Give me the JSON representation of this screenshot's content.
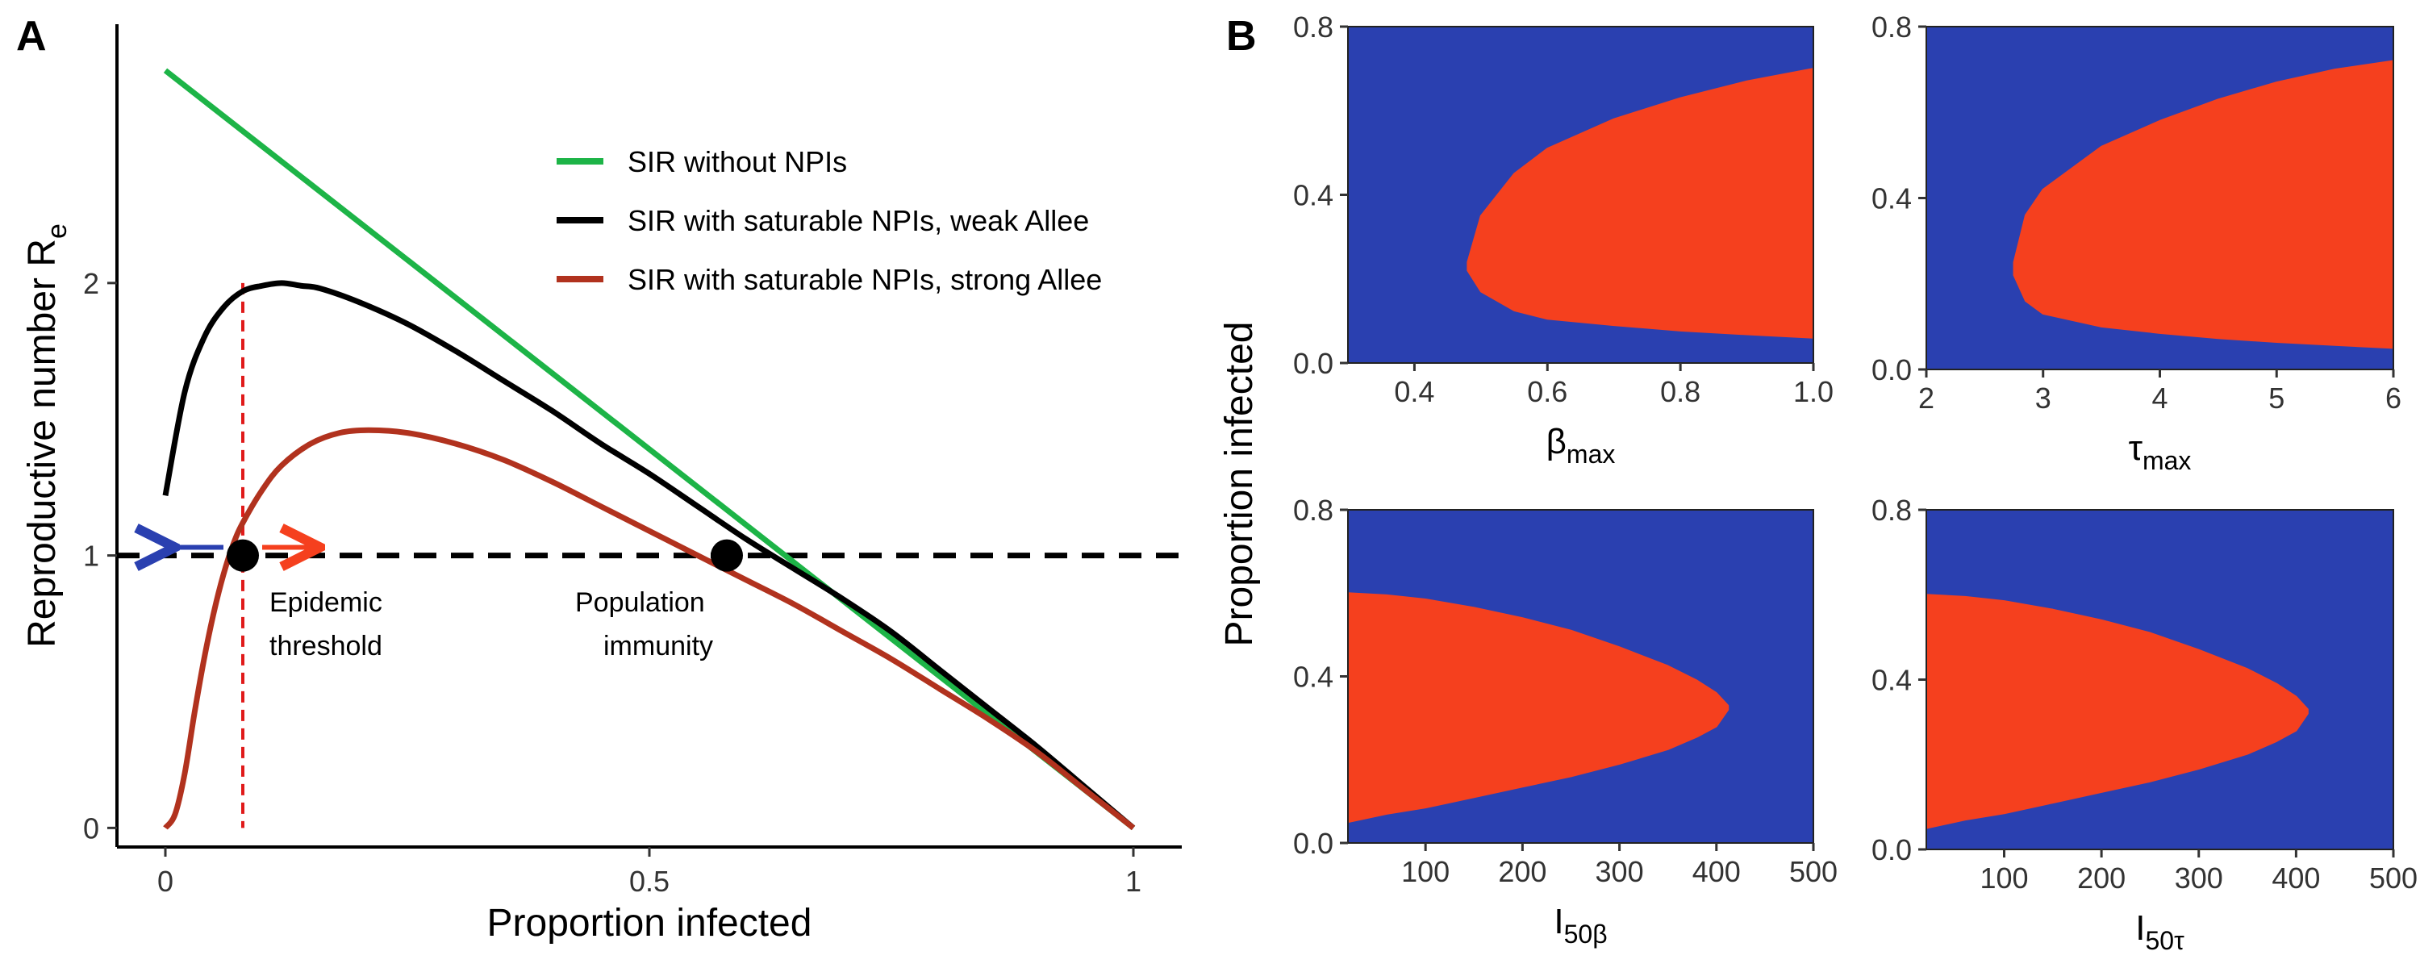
{
  "panel_a": {
    "letter": "A",
    "xlabel": "Proportion infected",
    "ylabel": "Reproductive number  R",
    "ylabel_sub": "e",
    "legend": [
      {
        "label": "SIR without NPIs",
        "color": "#1db447"
      },
      {
        "label": "SIR with saturable NPIs, weak Allee",
        "color": "#000000"
      },
      {
        "label": "SIR with saturable NPIs, strong Allee",
        "color": "#b1321e"
      }
    ],
    "annotations": {
      "epidemic_1": "Epidemic",
      "epidemic_2": "threshold",
      "immunity_1": "Population",
      "immunity_2": "immunity"
    }
  },
  "panel_b": {
    "letter": "B",
    "ylabel": "Proportion infected",
    "colors": {
      "low": "#2a40b0",
      "high": "#f5401e"
    }
  },
  "chart_data": [
    {
      "type": "line",
      "xlabel": "Proportion infected",
      "ylabel": "Reproductive number R_e",
      "xlim": [
        -0.05,
        1.05
      ],
      "ylim": [
        -0.07,
        2.95
      ],
      "x_ticks": [
        0,
        0.5,
        1
      ],
      "x_tick_labels": [
        "0",
        "0.5",
        "1"
      ],
      "y_ticks": [
        0,
        1,
        2
      ],
      "y_tick_labels": [
        "0",
        "1",
        "2"
      ],
      "series": [
        {
          "name": "SIR without NPIs",
          "color": "#1db447",
          "x": [
            0,
            1
          ],
          "y": [
            2.78,
            0
          ]
        },
        {
          "name": "SIR with saturable NPIs, weak Allee",
          "color": "#000000",
          "x": [
            0,
            0.02,
            0.04,
            0.06,
            0.08,
            0.1,
            0.12,
            0.14,
            0.16,
            0.2,
            0.25,
            0.3,
            0.35,
            0.4,
            0.45,
            0.5,
            0.55,
            0.6,
            0.65,
            0.7,
            0.75,
            0.8,
            0.85,
            0.9,
            0.95,
            1.0
          ],
          "y": [
            1.22,
            1.6,
            1.8,
            1.91,
            1.97,
            1.99,
            2.0,
            1.99,
            1.98,
            1.93,
            1.85,
            1.75,
            1.64,
            1.53,
            1.41,
            1.3,
            1.18,
            1.06,
            0.95,
            0.84,
            0.72,
            0.58,
            0.44,
            0.3,
            0.15,
            0
          ]
        },
        {
          "name": "SIR with saturable NPIs, strong Allee",
          "color": "#b1321e",
          "x": [
            0,
            0.01,
            0.02,
            0.03,
            0.04,
            0.05,
            0.06,
            0.07,
            0.08,
            0.1,
            0.12,
            0.15,
            0.18,
            0.21,
            0.25,
            0.3,
            0.35,
            0.4,
            0.45,
            0.5,
            0.55,
            0.6,
            0.65,
            0.7,
            0.75,
            0.8,
            0.85,
            0.9,
            0.95,
            1.0
          ],
          "y": [
            0,
            0.05,
            0.2,
            0.42,
            0.62,
            0.79,
            0.93,
            1.04,
            1.12,
            1.24,
            1.33,
            1.41,
            1.45,
            1.46,
            1.45,
            1.41,
            1.35,
            1.27,
            1.18,
            1.09,
            1.0,
            0.91,
            0.82,
            0.72,
            0.62,
            0.51,
            0.4,
            0.28,
            0.14,
            0
          ]
        }
      ],
      "reference_lines": [
        {
          "orientation": "horizontal",
          "value": 1,
          "style": "dashed",
          "color": "#000000"
        },
        {
          "orientation": "vertical",
          "value": 0.08,
          "style": "dashed",
          "color": "#e01a1a",
          "from": 0,
          "to": 2
        }
      ],
      "points": [
        {
          "label": "Epidemic threshold",
          "x": 0.08,
          "y": 1
        },
        {
          "label": "Population immunity",
          "x": 0.58,
          "y": 1
        }
      ],
      "arrows": [
        {
          "from": 0.06,
          "to": 0.01,
          "y": 1.03,
          "color": "#2a40b0"
        },
        {
          "from": 0.1,
          "to": 0.16,
          "y": 1.03,
          "color": "#f5401e"
        }
      ]
    },
    {
      "type": "heatmap",
      "xlabel": "β",
      "xlabel_sub": "max",
      "ylabel": "Proportion infected",
      "xlim": [
        0.3,
        1.0
      ],
      "ylim": [
        0,
        0.8
      ],
      "x_ticks": [
        0.4,
        0.6,
        0.8,
        1.0
      ],
      "x_tick_labels": [
        "0.4",
        "0.6",
        "0.8",
        "1.0"
      ],
      "y_ticks": [
        0,
        0.4,
        0.8
      ],
      "y_tick_labels": [
        "0.0",
        "0.4",
        "0.8"
      ],
      "region_boundary": {
        "x": [
          0.48,
          0.5,
          0.55,
          0.6,
          0.7,
          0.8,
          0.9,
          1.0
        ],
        "lower": [
          0.22,
          0.17,
          0.125,
          0.105,
          0.09,
          0.077,
          0.068,
          0.06
        ],
        "upper": [
          0.24,
          0.35,
          0.45,
          0.51,
          0.58,
          0.63,
          0.67,
          0.7
        ]
      }
    },
    {
      "type": "heatmap",
      "xlabel": "τ",
      "xlabel_sub": "max",
      "ylabel": "Proportion infected",
      "xlim": [
        2,
        6
      ],
      "ylim": [
        0,
        0.8
      ],
      "x_ticks": [
        2,
        3,
        4,
        5,
        6
      ],
      "x_tick_labels": [
        "2",
        "3",
        "4",
        "5",
        "6"
      ],
      "y_ticks": [
        0,
        0.4,
        0.8
      ],
      "y_tick_labels": [
        "0.0",
        "0.4",
        "0.8"
      ],
      "region_boundary": {
        "x": [
          2.75,
          2.85,
          3.0,
          3.5,
          4.0,
          4.5,
          5.0,
          5.5,
          6.0
        ],
        "lower": [
          0.22,
          0.16,
          0.13,
          0.1,
          0.085,
          0.073,
          0.064,
          0.057,
          0.05
        ],
        "upper": [
          0.25,
          0.36,
          0.42,
          0.52,
          0.58,
          0.63,
          0.67,
          0.7,
          0.72
        ]
      }
    },
    {
      "type": "heatmap",
      "xlabel": "I",
      "xlabel_sub": "50β",
      "ylabel": "Proportion infected",
      "xlim": [
        20,
        500
      ],
      "ylim": [
        0,
        0.8
      ],
      "x_ticks": [
        100,
        200,
        300,
        400,
        500
      ],
      "x_tick_labels": [
        "100",
        "200",
        "300",
        "400",
        "500"
      ],
      "y_ticks": [
        0,
        0.4,
        0.8
      ],
      "y_tick_labels": [
        "0.0",
        "0.4",
        "0.8"
      ],
      "region_boundary": {
        "x": [
          20,
          60,
          100,
          150,
          200,
          250,
          300,
          350,
          380,
          400,
          412
        ],
        "lower": [
          0.05,
          0.07,
          0.085,
          0.11,
          0.135,
          0.16,
          0.19,
          0.225,
          0.255,
          0.28,
          0.32
        ],
        "upper": [
          0.6,
          0.595,
          0.585,
          0.565,
          0.54,
          0.51,
          0.47,
          0.425,
          0.39,
          0.36,
          0.33
        ]
      }
    },
    {
      "type": "heatmap",
      "xlabel": "I",
      "xlabel_sub": "50τ",
      "ylabel": "Proportion infected",
      "xlim": [
        20,
        500
      ],
      "ylim": [
        0,
        0.8
      ],
      "x_ticks": [
        100,
        200,
        300,
        400,
        500
      ],
      "x_tick_labels": [
        "100",
        "200",
        "300",
        "400",
        "500"
      ],
      "y_ticks": [
        0,
        0.4,
        0.8
      ],
      "y_tick_labels": [
        "0.0",
        "0.4",
        "0.8"
      ],
      "region_boundary": {
        "x": [
          20,
          60,
          100,
          150,
          200,
          250,
          300,
          350,
          380,
          400,
          412
        ],
        "lower": [
          0.05,
          0.07,
          0.085,
          0.11,
          0.135,
          0.16,
          0.19,
          0.225,
          0.255,
          0.28,
          0.32
        ],
        "upper": [
          0.6,
          0.595,
          0.585,
          0.565,
          0.54,
          0.51,
          0.47,
          0.425,
          0.39,
          0.36,
          0.33
        ]
      }
    }
  ]
}
